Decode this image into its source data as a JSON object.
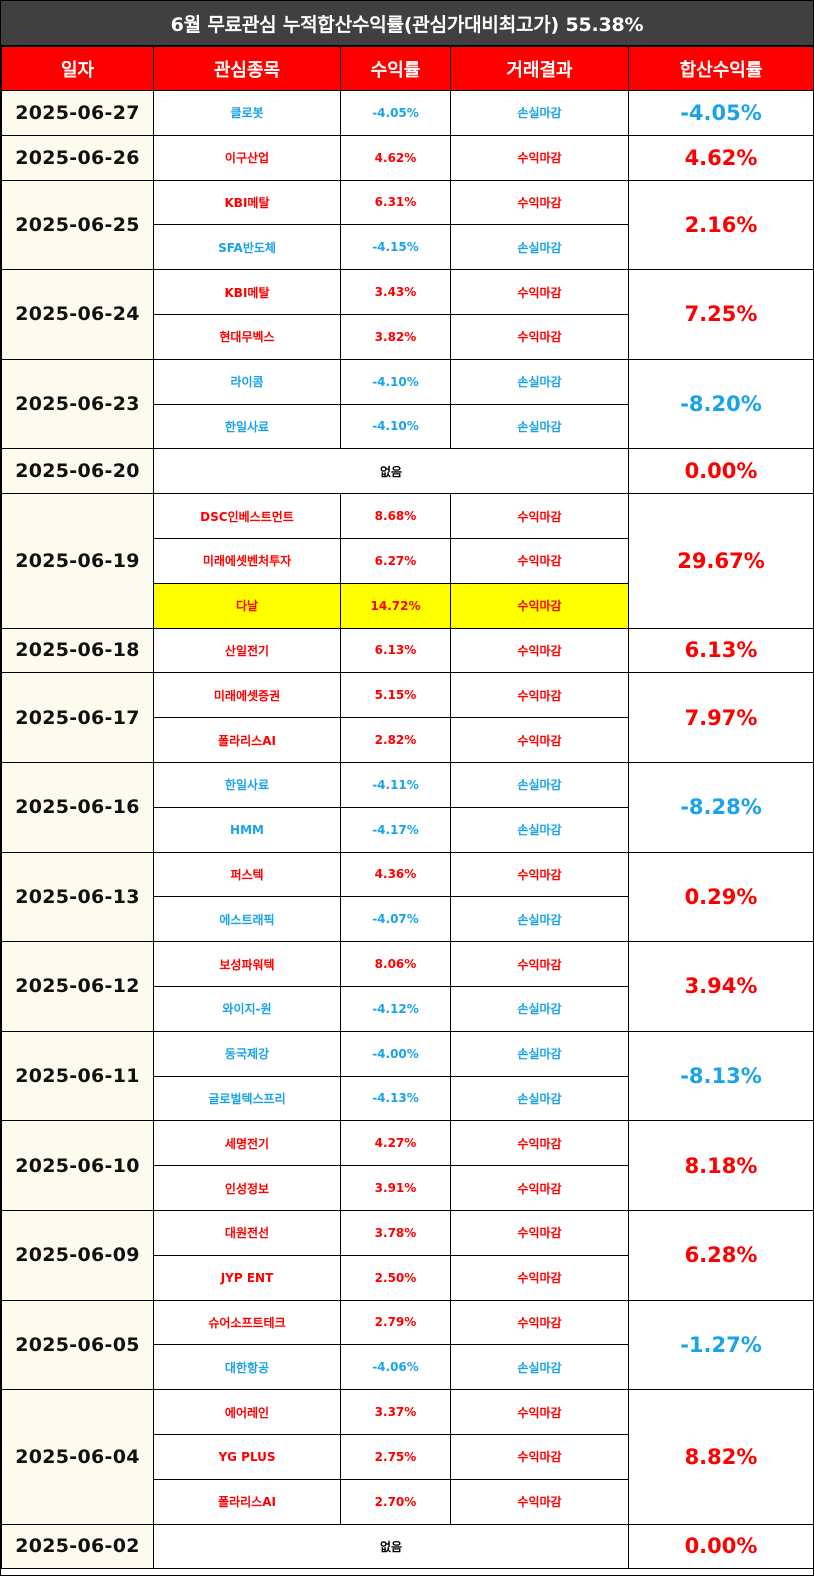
{
  "title": "6월 무료관심 누적합산수익률(관심가대비최고가) 55.38%",
  "headers": [
    "일자",
    "관심종목",
    "수익률",
    "거래결과",
    "합산수익률"
  ],
  "colors": {
    "profit": "#ff0000",
    "loss": "#1aa3e6",
    "header_bg": "#ff0000",
    "title_bg": "#404040",
    "highlight": "#ffff00"
  },
  "rows": [
    {
      "date": "2025-06-27",
      "total": "-4.05%",
      "total_type": "loss",
      "items": [
        {
          "stock": "클로봇",
          "rate": "-4.05%",
          "result": "손실마감",
          "type": "loss"
        }
      ]
    },
    {
      "date": "2025-06-26",
      "total": "4.62%",
      "total_type": "profit",
      "items": [
        {
          "stock": "이구산업",
          "rate": "4.62%",
          "result": "수익마감",
          "type": "profit"
        }
      ]
    },
    {
      "date": "2025-06-25",
      "total": "2.16%",
      "total_type": "profit",
      "items": [
        {
          "stock": "KBI메탈",
          "rate": "6.31%",
          "result": "수익마감",
          "type": "profit"
        },
        {
          "stock": "SFA반도체",
          "rate": "-4.15%",
          "result": "손실마감",
          "type": "loss"
        }
      ]
    },
    {
      "date": "2025-06-24",
      "total": "7.25%",
      "total_type": "profit",
      "items": [
        {
          "stock": "KBI메탈",
          "rate": "3.43%",
          "result": "수익마감",
          "type": "profit"
        },
        {
          "stock": "현대무벡스",
          "rate": "3.82%",
          "result": "수익마감",
          "type": "profit"
        }
      ]
    },
    {
      "date": "2025-06-23",
      "total": "-8.20%",
      "total_type": "loss",
      "items": [
        {
          "stock": "라이콤",
          "rate": "-4.10%",
          "result": "손실마감",
          "type": "loss"
        },
        {
          "stock": "한일사료",
          "rate": "-4.10%",
          "result": "손실마감",
          "type": "loss"
        }
      ]
    },
    {
      "date": "2025-06-20",
      "total": "0.00%",
      "total_type": "profit",
      "none": "없음",
      "items": []
    },
    {
      "date": "2025-06-19",
      "total": "29.67%",
      "total_type": "profit",
      "items": [
        {
          "stock": "DSC인베스트먼트",
          "rate": "8.68%",
          "result": "수익마감",
          "type": "profit"
        },
        {
          "stock": "미래에셋벤처투자",
          "rate": "6.27%",
          "result": "수익마감",
          "type": "profit"
        },
        {
          "stock": "다날",
          "rate": "14.72%",
          "result": "수익마감",
          "type": "profit",
          "highlight": true
        }
      ]
    },
    {
      "date": "2025-06-18",
      "total": "6.13%",
      "total_type": "profit",
      "items": [
        {
          "stock": "산일전기",
          "rate": "6.13%",
          "result": "수익마감",
          "type": "profit"
        }
      ]
    },
    {
      "date": "2025-06-17",
      "total": "7.97%",
      "total_type": "profit",
      "items": [
        {
          "stock": "미래에셋증권",
          "rate": "5.15%",
          "result": "수익마감",
          "type": "profit"
        },
        {
          "stock": "폴라리스AI",
          "rate": "2.82%",
          "result": "수익마감",
          "type": "profit"
        }
      ]
    },
    {
      "date": "2025-06-16",
      "total": "-8.28%",
      "total_type": "loss",
      "items": [
        {
          "stock": "한일사료",
          "rate": "-4.11%",
          "result": "손실마감",
          "type": "loss"
        },
        {
          "stock": "HMM",
          "rate": "-4.17%",
          "result": "손실마감",
          "type": "loss"
        }
      ]
    },
    {
      "date": "2025-06-13",
      "total": "0.29%",
      "total_type": "profit",
      "items": [
        {
          "stock": "퍼스텍",
          "rate": "4.36%",
          "result": "수익마감",
          "type": "profit"
        },
        {
          "stock": "에스트래픽",
          "rate": "-4.07%",
          "result": "손실마감",
          "type": "loss"
        }
      ]
    },
    {
      "date": "2025-06-12",
      "total": "3.94%",
      "total_type": "profit",
      "items": [
        {
          "stock": "보성파워텍",
          "rate": "8.06%",
          "result": "수익마감",
          "type": "profit"
        },
        {
          "stock": "와이지-원",
          "rate": "-4.12%",
          "result": "손실마감",
          "type": "loss"
        }
      ]
    },
    {
      "date": "2025-06-11",
      "total": "-8.13%",
      "total_type": "loss",
      "items": [
        {
          "stock": "동국제강",
          "rate": "-4.00%",
          "result": "손실마감",
          "type": "loss"
        },
        {
          "stock": "글로벌텍스프리",
          "rate": "-4.13%",
          "result": "손실마감",
          "type": "loss"
        }
      ]
    },
    {
      "date": "2025-06-10",
      "total": "8.18%",
      "total_type": "profit",
      "items": [
        {
          "stock": "세명전기",
          "rate": "4.27%",
          "result": "수익마감",
          "type": "profit"
        },
        {
          "stock": "인성정보",
          "rate": "3.91%",
          "result": "수익마감",
          "type": "profit"
        }
      ]
    },
    {
      "date": "2025-06-09",
      "total": "6.28%",
      "total_type": "profit",
      "items": [
        {
          "stock": "대원전선",
          "rate": "3.78%",
          "result": "수익마감",
          "type": "profit"
        },
        {
          "stock": "JYP ENT",
          "rate": "2.50%",
          "result": "수익마감",
          "type": "profit"
        }
      ]
    },
    {
      "date": "2025-06-05",
      "total": "-1.27%",
      "total_type": "loss",
      "items": [
        {
          "stock": "슈어소프트테크",
          "rate": "2.79%",
          "result": "수익마감",
          "type": "profit"
        },
        {
          "stock": "대한항공",
          "rate": "-4.06%",
          "result": "손실마감",
          "type": "loss"
        }
      ]
    },
    {
      "date": "2025-06-04",
      "total": "8.82%",
      "total_type": "profit",
      "items": [
        {
          "stock": "에어레인",
          "rate": "3.37%",
          "result": "수익마감",
          "type": "profit"
        },
        {
          "stock": "YG PLUS",
          "rate": "2.75%",
          "result": "수익마감",
          "type": "profit"
        },
        {
          "stock": "폴라리스AI",
          "rate": "2.70%",
          "result": "수익마감",
          "type": "profit"
        }
      ]
    },
    {
      "date": "2025-06-02",
      "total": "0.00%",
      "total_type": "profit",
      "none": "없음",
      "items": []
    }
  ]
}
